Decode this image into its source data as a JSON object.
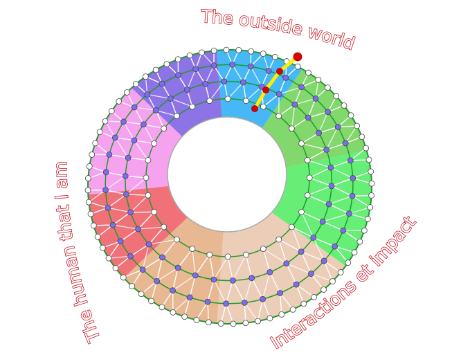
{
  "labels": {
    "top": "The outside world",
    "left": "The human that I am",
    "right": "Interactions et impact"
  },
  "colors": {
    "sectors": [
      "#45b8f5",
      "#82d86c",
      "#66ee77",
      "#ebcdb8",
      "#e8b893",
      "#f07177",
      "#f5a3ef",
      "#8c73e6"
    ],
    "ring_lines": "#1e9a2a",
    "mesh": "#ffffff",
    "inner_nodes": "#7b6cf0",
    "boundary_nodes": "#ffffff",
    "path": "#ffee00",
    "path_nodes": "#e00000",
    "text_outline": "#c8141e"
  }
}
